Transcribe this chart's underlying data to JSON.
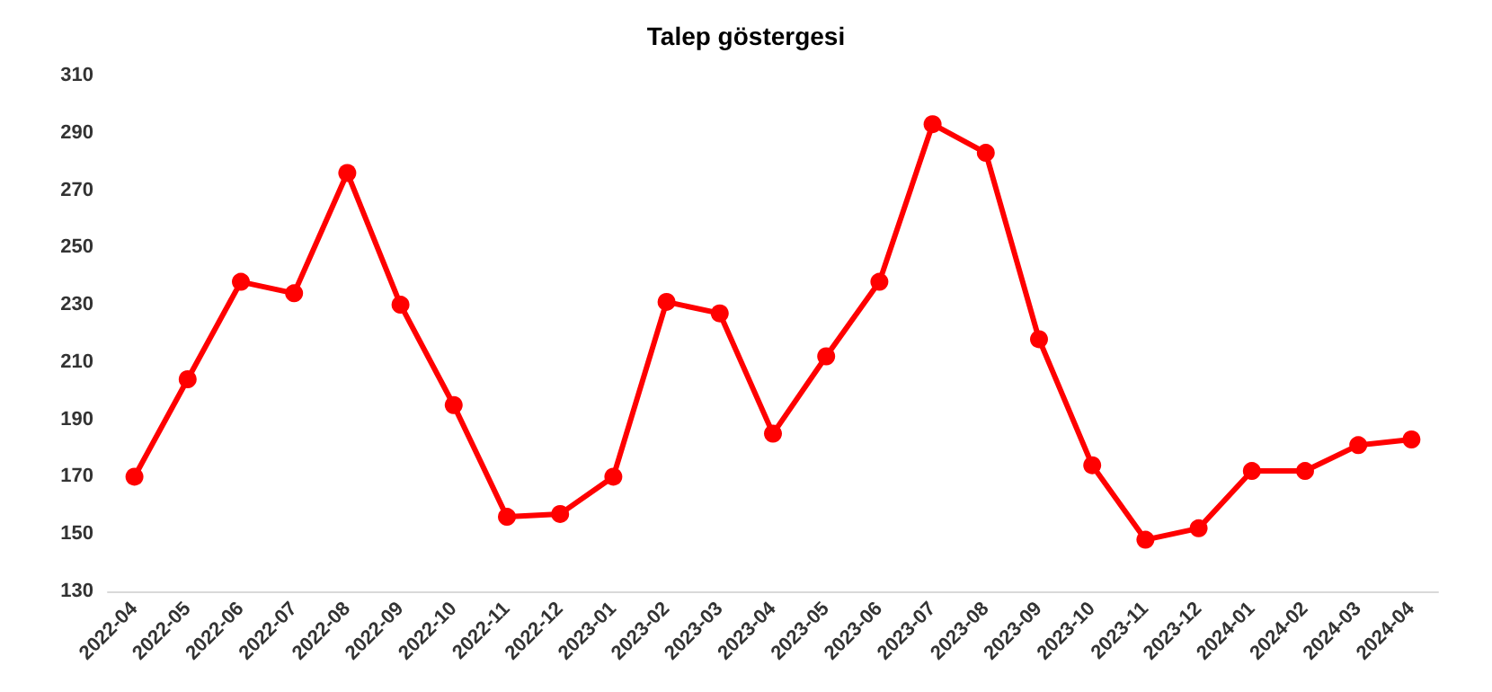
{
  "chart_data": {
    "type": "line",
    "title": "Talep göstergesi",
    "categories": [
      "2022-04",
      "2022-05",
      "2022-06",
      "2022-07",
      "2022-08",
      "2022-09",
      "2022-10",
      "2022-11",
      "2022-12",
      "2023-01",
      "2023-02",
      "2023-03",
      "2023-04",
      "2023-05",
      "2023-06",
      "2023-07",
      "2023-08",
      "2023-09",
      "2023-10",
      "2023-11",
      "2023-12",
      "2024-01",
      "2024-02",
      "2024-03",
      "2024-04"
    ],
    "series": [
      {
        "color": "#ff0000",
        "values": [
          170,
          204,
          238,
          234,
          276,
          230,
          195,
          156,
          157,
          170,
          231,
          227,
          185,
          212,
          238,
          293,
          283,
          218,
          174,
          148,
          152,
          172,
          172,
          181,
          183
        ]
      }
    ],
    "ylim": [
      130,
      310
    ],
    "yticks": [
      130,
      150,
      170,
      190,
      210,
      230,
      250,
      270,
      290,
      310
    ],
    "grid": false,
    "marker": "circle",
    "line_style": "solid"
  }
}
